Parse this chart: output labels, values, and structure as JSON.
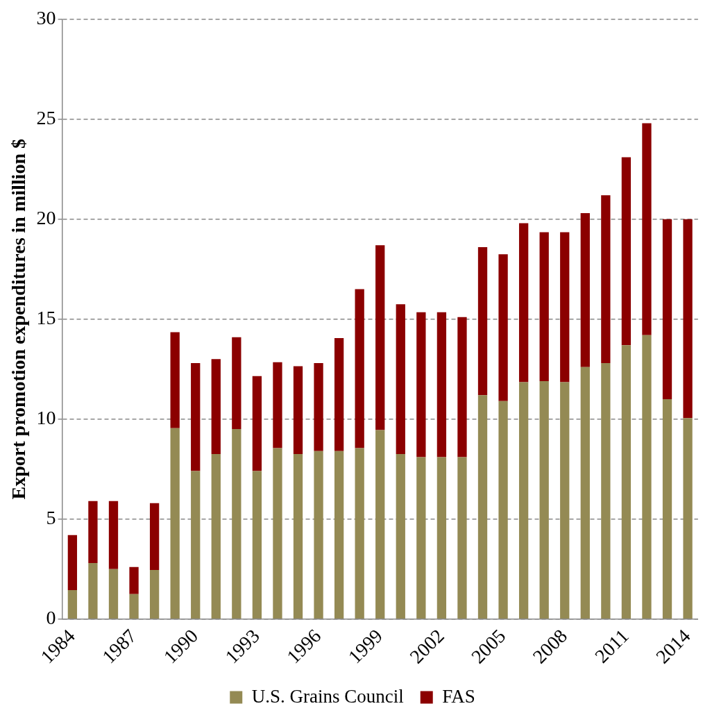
{
  "chart_data": {
    "type": "bar",
    "stacked": true,
    "ylabel": "Export promotion expenditures in million $",
    "categories": [
      "1984",
      null,
      null,
      "1987",
      null,
      null,
      "1990",
      null,
      null,
      "1993",
      null,
      null,
      "1996",
      null,
      null,
      "1999",
      null,
      null,
      "2002",
      null,
      null,
      "2005",
      null,
      null,
      "2008",
      null,
      null,
      "2011",
      null,
      null,
      "2014"
    ],
    "series": [
      {
        "name": "U.S. Grains Council",
        "color": "#948a54",
        "values": [
          1.45,
          2.8,
          2.5,
          1.25,
          2.45,
          9.55,
          7.4,
          8.25,
          9.5,
          7.4,
          8.55,
          8.25,
          8.4,
          8.4,
          8.55,
          9.45,
          8.25,
          8.1,
          8.1,
          8.1,
          11.2,
          10.9,
          11.85,
          11.9,
          11.85,
          12.6,
          12.8,
          13.7,
          14.2,
          11.0,
          10.05
        ]
      },
      {
        "name": "FAS",
        "color": "#8b0000",
        "values": [
          2.75,
          3.1,
          3.4,
          1.35,
          3.35,
          4.8,
          5.4,
          4.75,
          4.6,
          4.75,
          4.3,
          4.4,
          4.4,
          5.65,
          7.95,
          9.25,
          7.5,
          7.25,
          7.25,
          7.0,
          7.4,
          7.35,
          7.95,
          7.45,
          7.5,
          7.7,
          8.4,
          9.4,
          10.6,
          9.0,
          9.95
        ]
      }
    ],
    "ylim": [
      0,
      30
    ],
    "yticks": [
      0,
      5,
      10,
      15,
      20,
      25,
      30
    ],
    "grid": "y",
    "legend": "bottom"
  }
}
